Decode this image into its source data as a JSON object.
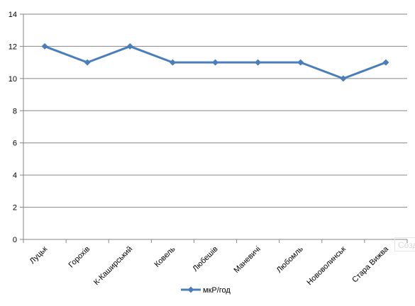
{
  "chart_data": {
    "type": "line",
    "categories": [
      "Луцьк",
      "Горохів",
      "К-Каширський",
      "Ковель",
      "Любешів",
      "Маневичі",
      "Любомль",
      "Нововолинськ",
      "Стара Вижва"
    ],
    "series": [
      {
        "name": "мкР/год",
        "values": [
          12,
          11,
          12,
          11,
          11,
          11,
          11,
          10,
          11
        ],
        "color": "#4a7ebb",
        "marker": "diamond"
      }
    ],
    "ylim": [
      0,
      14
    ],
    "yticks": [
      0,
      2,
      4,
      6,
      8,
      10,
      12,
      14
    ],
    "grid": true,
    "legend": "bottom",
    "title": "",
    "xlabel": "",
    "ylabel": ""
  },
  "watermark_text": "Созд",
  "colors": {
    "gridline": "#868686",
    "axis": "#868686"
  }
}
